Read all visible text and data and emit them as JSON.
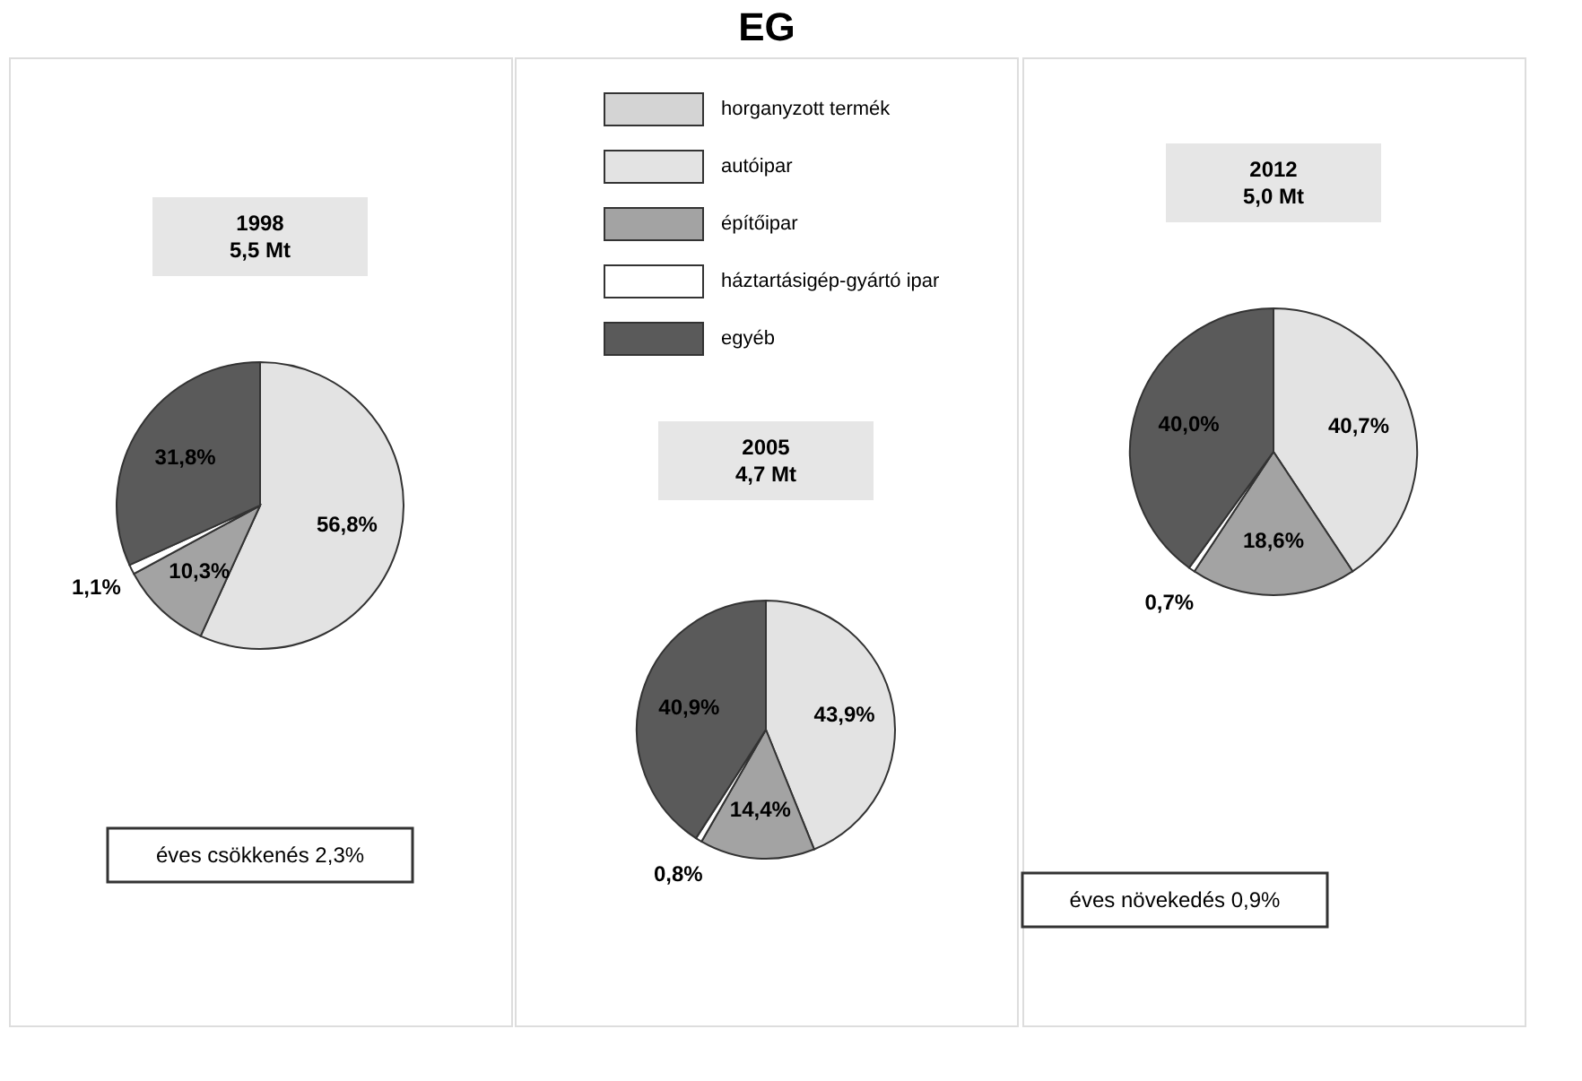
{
  "chart_data": [
    {
      "type": "other",
      "title": "EG",
      "annotations": [
        "éves csökkenés 2,3%",
        "éves növekedés 0,9%"
      ]
    },
    {
      "type": "pie",
      "title": "1998",
      "subtitle": "5,5 Mt",
      "categories": [
        "horganyzott termék",
        "autóipar",
        "építőipar",
        "háztartásigép-gyártó ipar",
        "egyéb"
      ],
      "values": [
        null,
        56.8,
        10.3,
        1.1,
        31.8
      ],
      "colors": [
        "#d4d4d4",
        "#e3e3e3",
        "#a3a3a3",
        "#ffffff",
        "#5a5a5a"
      ],
      "value_labels": [
        null,
        "56,8%",
        "10,3%",
        "1,1%",
        "31,8%"
      ],
      "legend": "top"
    },
    {
      "type": "pie",
      "title": "2005",
      "subtitle": "4,7 Mt",
      "categories": [
        null,
        null,
        null,
        null,
        null
      ],
      "values": [
        null,
        43.9,
        14.4,
        0.8,
        40.9
      ],
      "colors": [
        "#d4d4d4",
        "#e3e3e3",
        "#a3a3a3",
        "#ffffff",
        "#5a5a5a"
      ],
      "value_labels": [
        null,
        "43,9%",
        "14,4%",
        "0,8%",
        "40,9%"
      ]
    },
    {
      "type": "pie",
      "title": "2012",
      "subtitle": "5,0 Mt",
      "categories": [
        null,
        null,
        null,
        null,
        null
      ],
      "values": [
        null,
        40.7,
        18.6,
        0.7,
        40.0
      ],
      "colors": [
        "#d4d4d4",
        "#e3e3e3",
        "#a3a3a3",
        "#ffffff",
        "#5a5a5a"
      ],
      "value_labels": [
        null,
        "40,7%",
        "18,6%",
        "0,7%",
        "40,0%"
      ]
    }
  ]
}
